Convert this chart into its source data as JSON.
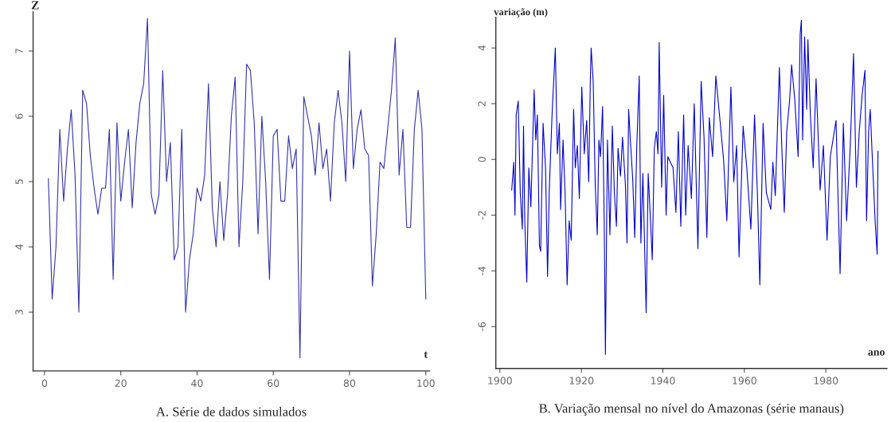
{
  "chart_data": [
    {
      "type": "line",
      "title": "A. Série de dados simulados",
      "xlabel": "t",
      "ylabel": "Z",
      "x": [
        1,
        2,
        3,
        4,
        5,
        6,
        7,
        8,
        9,
        10,
        11,
        12,
        13,
        14,
        15,
        16,
        17,
        18,
        19,
        20,
        21,
        22,
        23,
        24,
        25,
        26,
        27,
        28,
        29,
        30,
        31,
        32,
        33,
        34,
        35,
        36,
        37,
        38,
        39,
        40,
        41,
        42,
        43,
        44,
        45,
        46,
        47,
        48,
        49,
        50,
        51,
        52,
        53,
        54,
        55,
        56,
        57,
        58,
        59,
        60,
        61,
        62,
        63,
        64,
        65,
        66,
        67,
        68,
        69,
        70,
        71,
        72,
        73,
        74,
        75,
        76,
        77,
        78,
        79,
        80,
        81,
        82,
        83,
        84,
        85,
        86,
        87,
        88,
        89,
        90,
        91,
        92,
        93,
        94,
        95,
        96,
        97,
        98,
        99,
        100
      ],
      "series": [
        {
          "color": "#3333aa",
          "values": [
            5.05,
            3.2,
            4.0,
            5.8,
            4.7,
            5.5,
            6.1,
            5.1,
            3.0,
            6.4,
            6.2,
            5.4,
            4.9,
            4.5,
            4.9,
            4.9,
            5.8,
            3.5,
            5.9,
            4.7,
            5.3,
            5.8,
            4.6,
            5.6,
            6.2,
            6.5,
            7.5,
            4.8,
            4.5,
            4.8,
            6.7,
            5.0,
            5.6,
            3.8,
            4.0,
            5.8,
            3.0,
            3.8,
            4.2,
            4.9,
            4.7,
            5.1,
            6.5,
            4.6,
            4.0,
            5.0,
            4.1,
            4.8,
            6.0,
            6.6,
            4.0,
            5.0,
            6.8,
            6.7,
            5.9,
            4.2,
            6.0,
            5.0,
            3.5,
            5.7,
            5.8,
            4.7,
            4.7,
            5.7,
            5.2,
            5.5,
            2.3,
            6.3,
            6.0,
            5.7,
            5.1,
            5.9,
            5.2,
            5.5,
            4.7,
            5.9,
            6.4,
            5.9,
            5.0,
            7.0,
            5.2,
            5.8,
            6.1,
            5.5,
            5.4,
            3.4,
            4.2,
            5.3,
            5.2,
            5.8,
            6.4,
            7.2,
            5.1,
            5.8,
            4.3,
            4.3,
            5.8,
            6.4,
            5.8,
            3.2
          ]
        }
      ],
      "xlim": [
        -3,
        101
      ],
      "ylim": [
        2.1,
        7.6
      ],
      "xticks": [
        0,
        20,
        40,
        60,
        80,
        100
      ],
      "yticks": [
        3,
        4,
        5,
        6,
        7
      ],
      "grid": false
    },
    {
      "type": "line",
      "title": "B. Variação mensal no nível do Amazonas (série manaus)",
      "xlabel": "ano",
      "ylabel": "variação (m)",
      "x": [
        1902.9,
        1903.4,
        1903.7,
        1904.0,
        1904.5,
        1905.0,
        1905.5,
        1905.8,
        1906.1,
        1906.6,
        1907.1,
        1907.6,
        1908.4,
        1908.8,
        1909.2,
        1909.7,
        1910.0,
        1910.6,
        1911.2,
        1911.7,
        1912.1,
        1912.8,
        1913.6,
        1914.1,
        1914.6,
        1914.9,
        1915.5,
        1916.0,
        1916.5,
        1917.0,
        1917.5,
        1918.1,
        1918.5,
        1919.0,
        1919.5,
        1920.1,
        1920.7,
        1921.3,
        1921.8,
        1922.2,
        1922.4,
        1922.9,
        1923.4,
        1923.9,
        1924.3,
        1924.7,
        1925.2,
        1925.6,
        1925.9,
        1926.4,
        1927.0,
        1927.6,
        1928.1,
        1928.6,
        1929.0,
        1929.6,
        1930.1,
        1930.8,
        1931.2,
        1931.6,
        1932.1,
        1932.6,
        1933.1,
        1933.6,
        1934.2,
        1934.6,
        1935.1,
        1935.9,
        1936.4,
        1936.9,
        1937.4,
        1937.9,
        1938.4,
        1938.8,
        1939.1,
        1939.7,
        1940.2,
        1940.8,
        1941.2,
        1942.5,
        1943.2,
        1943.8,
        1944.4,
        1945.1,
        1945.6,
        1946.2,
        1947.0,
        1947.7,
        1948.6,
        1949.4,
        1950.1,
        1950.8,
        1951.4,
        1952.2,
        1953.0,
        1953.9,
        1954.9,
        1955.7,
        1956.7,
        1957.4,
        1958.1,
        1958.7,
        1959.7,
        1960.6,
        1961.6,
        1962.5,
        1963.2,
        1963.8,
        1964.6,
        1965.4,
        1966.5,
        1967.0,
        1967.6,
        1968.6,
        1969.2,
        1969.8,
        1970.4,
        1971.1,
        1971.6,
        1972.4,
        1973.2,
        1973.7,
        1974.0,
        1974.3,
        1974.8,
        1975.3,
        1975.6,
        1976.2,
        1976.9,
        1977.6,
        1978.6,
        1979.4,
        1980.3,
        1981.1,
        1982.5,
        1983.5,
        1984.3,
        1985.1,
        1986.0,
        1986.8,
        1987.5,
        1988.2,
        1988.9,
        1989.6,
        1990.0,
        1990.5,
        1990.9,
        1991.4,
        1992.1,
        1992.6,
        1992.8
      ],
      "series": [
        {
          "color": "#0000cc",
          "values": [
            -1.1,
            -0.1,
            -2.0,
            1.6,
            2.1,
            -1.2,
            -2.5,
            1.2,
            -2.2,
            -4.4,
            -0.3,
            -1.7,
            2.5,
            0.7,
            1.6,
            -3.1,
            -3.3,
            1.3,
            -0.3,
            -4.2,
            -1.2,
            1.6,
            4.0,
            0.2,
            1.3,
            -1.8,
            0.7,
            -1.2,
            -4.5,
            -2.2,
            -2.9,
            1.8,
            -0.3,
            0.5,
            -1.4,
            2.6,
            0.2,
            1.4,
            -0.8,
            2.9,
            4.0,
            2.8,
            -0.9,
            -2.7,
            0.7,
            0.1,
            1.9,
            -2.2,
            -7.0,
            0.7,
            -2.7,
            1.2,
            -1.2,
            -2.4,
            0.4,
            -0.6,
            0.8,
            -0.9,
            -3.0,
            1.8,
            0.5,
            -0.7,
            -2.8,
            0.5,
            3.0,
            -3.0,
            -0.5,
            -5.5,
            -0.5,
            -2.0,
            -3.6,
            0.4,
            1.0,
            0.2,
            4.2,
            -1.0,
            2.3,
            -2.0,
            0.1,
            -0.3,
            -1.9,
            1.0,
            -2.4,
            1.6,
            -2.0,
            0.5,
            -1.4,
            2.0,
            -3.2,
            2.8,
            0.8,
            -2.8,
            1.5,
            0.1,
            3.0,
            1.6,
            0.0,
            -2.2,
            2.6,
            -0.8,
            0.5,
            -3.5,
            1.2,
            -0.3,
            -2.5,
            1.6,
            -1.2,
            -4.5,
            1.3,
            -1.2,
            -1.8,
            -0.1,
            -1.3,
            3.3,
            0.4,
            -1.9,
            1.0,
            2.1,
            3.4,
            2.1,
            0.1,
            4.5,
            5.0,
            0.7,
            4.4,
            1.8,
            4.3,
            1.6,
            -0.3,
            2.9,
            -1.1,
            0.5,
            -2.9,
            0.1,
            1.4,
            -4.1,
            1.3,
            -2.2,
            0.5,
            3.8,
            -1.0,
            1.0,
            2.3,
            3.2,
            -2.2,
            1.0,
            1.8,
            0.1,
            -2.2,
            -3.4,
            0.3
          ]
        }
      ],
      "xlim": [
        1899,
        1995
      ],
      "ylim": [
        -7.5,
        5.1
      ],
      "xticks": [
        1900,
        1920,
        1940,
        1960,
        1980
      ],
      "yticks": [
        -6,
        -4,
        -2,
        0,
        2,
        4
      ],
      "grid": false
    }
  ]
}
